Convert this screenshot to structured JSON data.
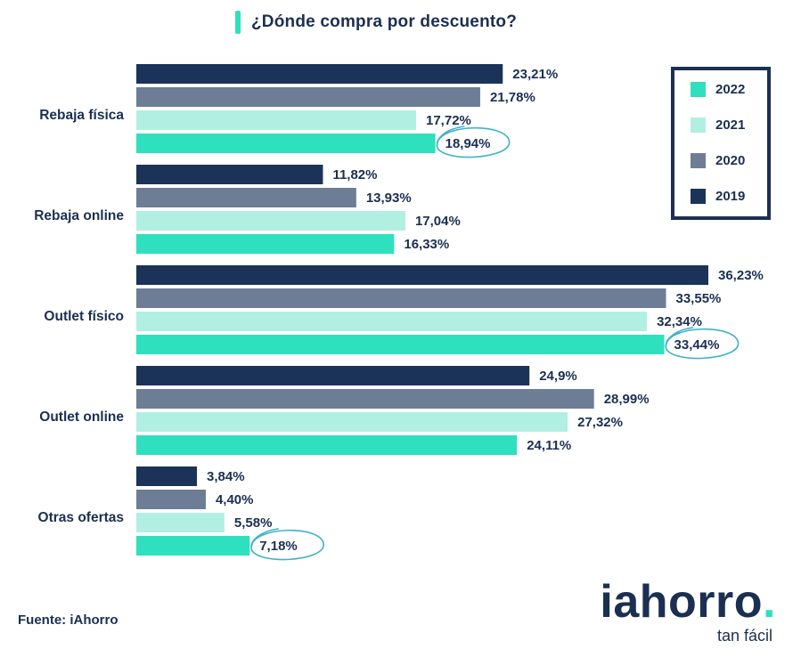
{
  "title": "¿Dónde compra por descuento?",
  "source": "Fuente: iAhorro",
  "brand": {
    "name": "iahorro",
    "dot": ".",
    "tagline": "tan fácil"
  },
  "colors": {
    "2019": "#1b3358",
    "2020": "#6e7d96",
    "2021": "#b2efe3",
    "2022": "#2ee0bd",
    "text": "#1b2f52",
    "highlight_circle": "#3fb2c8"
  },
  "chart_data": {
    "type": "bar",
    "orientation": "horizontal",
    "title": "¿Dónde compra por descuento?",
    "categories": [
      "Rebaja física",
      "Rebaja online",
      "Outlet físico",
      "Outlet online",
      "Otras ofertas"
    ],
    "series": [
      {
        "name": "2019",
        "values": [
          23.21,
          11.82,
          36.23,
          24.9,
          3.84
        ],
        "labels": [
          "23,21%",
          "11,82%",
          "36,23%",
          "24,9%",
          "3,84%"
        ]
      },
      {
        "name": "2020",
        "values": [
          21.78,
          13.93,
          33.55,
          28.99,
          4.4
        ],
        "labels": [
          "21,78%",
          "13,93%",
          "33,55%",
          "28,99%",
          "4,40%"
        ]
      },
      {
        "name": "2021",
        "values": [
          17.72,
          17.04,
          32.34,
          27.32,
          5.58
        ],
        "labels": [
          "17,72%",
          "17,04%",
          "32,34%",
          "27,32%",
          "5,58%"
        ]
      },
      {
        "name": "2022",
        "values": [
          18.94,
          16.33,
          33.44,
          24.11,
          7.18
        ],
        "labels": [
          "18,94%",
          "16,33%",
          "33,44%",
          "24,11%",
          "7,18%"
        ]
      }
    ],
    "legend": {
      "placement": "top-right",
      "order": [
        "2022",
        "2021",
        "2020",
        "2019"
      ]
    },
    "highlighted": [
      {
        "category": "Rebaja física",
        "series": "2022"
      },
      {
        "category": "Outlet físico",
        "series": "2022"
      },
      {
        "category": "Otras ofertas",
        "series": "2022"
      }
    ],
    "xlabel": "",
    "ylabel": "",
    "xlim": [
      0,
      40
    ],
    "grid": false
  }
}
